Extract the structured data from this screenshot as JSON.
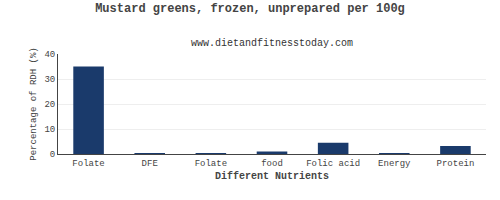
{
  "chart_data": {
    "type": "bar",
    "title": "Mustard greens, frozen, unprepared per 100g",
    "subtitle": "www.dietandfitnesstoday.com",
    "xlabel": "Different Nutrients",
    "ylabel": "Percentage of RDH (%)",
    "categories": [
      "Folate",
      "DFE",
      "Folate",
      "food",
      "Folic acid",
      "Energy",
      "Protein"
    ],
    "values": [
      35,
      0.2,
      0.2,
      1.0,
      4.5,
      0.2,
      3.2
    ],
    "color": "#1a3a6b",
    "ylim": [
      0,
      40
    ],
    "yticks": [
      0,
      10,
      20,
      30,
      40
    ],
    "grid": true
  }
}
